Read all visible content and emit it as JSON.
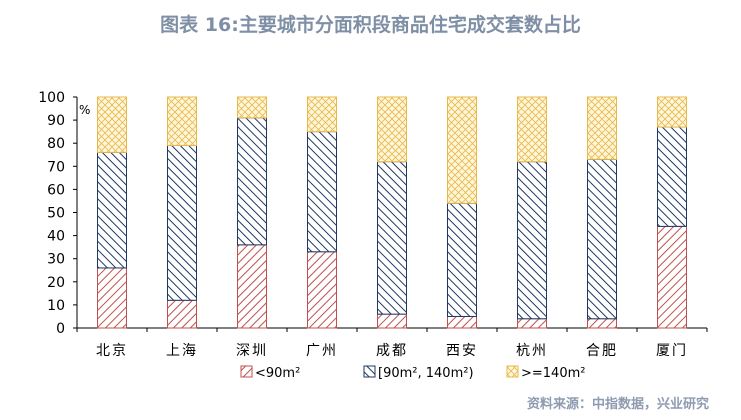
{
  "title": "图表 16:主要城市分面积段商品住宅成交套数占比",
  "source": "资料来源：中指数据，兴业研究",
  "colors": {
    "pattern_small": "#c0504d",
    "pattern_mid": "#1f3864",
    "pattern_large": "#e8b84a"
  },
  "chart_data": {
    "type": "bar",
    "stacked": true,
    "unit_label": "%",
    "ylim": [
      0,
      100
    ],
    "yticks": [
      "0",
      "10",
      "20",
      "30",
      "40",
      "50",
      "60",
      "70",
      "80",
      "90",
      "100"
    ],
    "categories": [
      "北京",
      "上海",
      "深圳",
      "广州",
      "成都",
      "西安",
      "杭州",
      "合肥",
      "厦门"
    ],
    "series": [
      {
        "name": "<90m²",
        "values": [
          26,
          12,
          36,
          33,
          6,
          5,
          4,
          4,
          44
        ]
      },
      {
        "name": "[90m², 140m²)",
        "values": [
          50,
          67,
          55,
          52,
          66,
          49,
          68,
          69,
          43
        ]
      },
      {
        "name": ">=140m²",
        "values": [
          24,
          21,
          9,
          15,
          28,
          46,
          28,
          27,
          13
        ]
      }
    ],
    "legend_position": "bottom",
    "grid": false
  }
}
